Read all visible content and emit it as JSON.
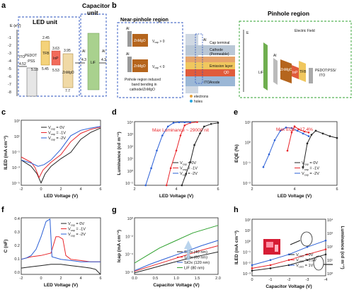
{
  "panels": {
    "a": {
      "label": "a",
      "led_title": "LED unit",
      "cap_title_1": "Capacitor",
      "cap_title_2": "unit",
      "yaxis_label": "E (eV)",
      "yticks": [
        "-1",
        "-2",
        "-3",
        "-4",
        "-5",
        "-6",
        "-7",
        "-8"
      ],
      "levels": {
        "ito": "ITO",
        "ito_val": "4.52",
        "pedot": "PEDOT",
        "pss": ":PSS",
        "pedot_val": "5.18",
        "tfb": "TFB",
        "tfb_top": "2.45",
        "tfb_bot": "5.45",
        "inp": "InP",
        "inp_top": "3.63",
        "inp_bot": "5.53",
        "znmgo": "ZnMgO",
        "znmgo_top": "3.95",
        "znmgo_bot": "7.7",
        "al1": "Al",
        "al1_val": "4.3",
        "lif": "LiF",
        "al2": "Al",
        "al2_val": "4.3"
      }
    },
    "b": {
      "label": "b",
      "near_title": "Near-pinhole region",
      "pin_title": "Pinhole region",
      "al": "Al",
      "znmgo": "ZnMgO",
      "vcap_pos": "V",
      "vcap_neg": "V",
      "gt0": " > 0",
      "lt0": " < 0",
      "caption": [
        "Pinhole region induced",
        "band bending in",
        "cathode/ZnMgO"
      ],
      "stack": [
        "Cap terminal",
        "Cathode",
        "(Permeable)",
        "Emission layer",
        "Anode"
      ],
      "al_tag": "Al",
      "qd": "QD",
      "ito": "ITO",
      "legend_e": "electrons",
      "legend_h": "holes",
      "e_axis": "E",
      "efield": "Electric Field",
      "lif": "LiF",
      "pin_layers": [
        "Al",
        "ZnMgO",
        "InP",
        "TFB",
        "PEDOT:PSS/",
        "ITO"
      ]
    },
    "c": {
      "label": "c",
      "ylabel": "I",
      "ylabel_sub": "LED",
      "ylabel_unit": " (mA cm",
      "xlabel": "LED Voltage (V)",
      "xticks": [
        "-2",
        "0",
        "2",
        "4",
        "6"
      ],
      "yticks": [
        "10³",
        "10¹",
        "10⁻¹",
        "10⁻³",
        "10⁻⁵"
      ]
    },
    "d": {
      "label": "d",
      "ylabel": "Luminance (cd m",
      "xlabel": "LED Voltage (V)",
      "annotation": "Max Luminance ~ 29000 nit",
      "xticks": [
        "2",
        "4",
        "6"
      ],
      "yticks": [
        "10⁴",
        "10³",
        "10²",
        "10¹",
        "10⁰",
        "10⁻¹"
      ]
    },
    "e": {
      "label": "e",
      "ylabel": "EQE (%)",
      "xlabel": "LED Voltage (V)",
      "annotation": "Max EQE ~17.4%",
      "xticks": [
        "2",
        "4",
        "6"
      ],
      "yticks": [
        "10¹",
        "10⁰",
        "10⁻¹",
        "10⁻²"
      ]
    },
    "f": {
      "label": "f",
      "ylabel": "C (nF)",
      "xlabel": "LED Voltage (V)",
      "xticks": [
        "-2",
        "0",
        "2",
        "4",
        "6"
      ],
      "yticks": [
        "0.4",
        "0.3",
        "0.2",
        "0.1",
        "0.0"
      ]
    },
    "g": {
      "label": "g",
      "ylabel": "I",
      "ylabel_sub": "cap",
      "ylabel_unit": " (mA cm",
      "xlabel": "Capacitor Voltage (V)",
      "xticks": [
        "0.0",
        "0.5",
        "1.0",
        "1.5",
        "2.0"
      ],
      "yticks": [
        "10⁰",
        "10⁻²",
        "10⁻⁴",
        "10⁻⁶"
      ]
    },
    "h": {
      "label": "h",
      "ylabel": "I",
      "ylabel_sub": "LED",
      "ylabel_unit": " (mA cm",
      "xlabel": "Capacitor Voltage (V)",
      "ylabel_r": "Luminance (cd m",
      "xticks": [
        "0",
        "-1",
        "-2",
        "-3",
        "-4"
      ],
      "yticks": [
        "10²",
        "10¹",
        "10⁰",
        "10⁻¹",
        "10⁻²",
        "10⁻³"
      ],
      "yticks_r": [
        "10⁴",
        "10³",
        "10²",
        "10¹",
        "10⁰"
      ]
    }
  },
  "legend_vcap": [
    {
      "name": "V",
      "sub": "cap",
      "val": " = 0V",
      "color": "#222222"
    },
    {
      "name": "V",
      "sub": "cap",
      "val": " = -1V",
      "color": "#e8262b"
    },
    {
      "name": "V",
      "sub": "cap",
      "val": " = -2V",
      "color": "#2a5fd6"
    }
  ],
  "legend_f": [
    {
      "name": "V",
      "sub": "cap",
      "val": " = 0V",
      "color": "#222222"
    },
    {
      "name": "V",
      "sub": "cap",
      "val": " = -1V",
      "color": "#e8262b"
    },
    {
      "name": "V",
      "sub": "cap",
      "val": " = -2V",
      "color": "#2a5fd6"
    }
  ],
  "legend_g": [
    {
      "name": "SiOx (40 nm)",
      "color": "#222222"
    },
    {
      "name": "SiOx (60 nm)",
      "color": "#e8262b"
    },
    {
      "name": "SiOx (120 nm)",
      "color": "#2a5fd6"
    },
    {
      "name": "LiF (80 nm)",
      "color": "#2ca02c"
    }
  ],
  "legend_h": [
    {
      "name": "V",
      "sub": "LED",
      "val": " = 0V",
      "color": "#222222"
    },
    {
      "name": "V",
      "sub": "LED",
      "val": " = 0.5V",
      "color": "#e8262b"
    },
    {
      "name": "V",
      "sub": "LED",
      "val": " = 1V",
      "color": "#2a5fd6"
    }
  ],
  "chart_data": [
    {
      "panel": "c",
      "type": "line",
      "xlim": [
        -2,
        6
      ],
      "log_y": true,
      "series": [
        {
          "name": "Vcap = 0V",
          "x": [
            -2,
            -1,
            -0.4,
            0,
            0.4,
            1,
            2,
            3,
            4,
            5,
            6
          ],
          "y": [
            0.02,
            0.003,
            0.0003,
            2e-05,
            0.0003,
            0.003,
            0.03,
            0.2,
            10,
            80,
            300
          ]
        },
        {
          "name": "Vcap = -1V",
          "x": [
            -2,
            -1,
            -0.6,
            -0.2,
            0.2,
            1,
            2,
            3,
            4,
            5,
            6
          ],
          "y": [
            0.05,
            0.01,
            0.002,
            0.0001,
            0.001,
            0.01,
            0.1,
            5,
            60,
            200,
            400
          ]
        },
        {
          "name": "Vcap = -2V",
          "x": [
            -2,
            -1,
            -0.3,
            0.3,
            1,
            2,
            3,
            4,
            5,
            6
          ],
          "y": [
            0.02,
            0.008,
            0.003,
            0.005,
            0.02,
            0.5,
            30,
            150,
            300,
            500
          ]
        }
      ]
    },
    {
      "panel": "d",
      "type": "line",
      "xlim": [
        0,
        6
      ],
      "log_y": true,
      "series": [
        {
          "name": "Vcap = 0V",
          "x": [
            3.4,
            3.7,
            4,
            4.3,
            4.7,
            5,
            5.5,
            6
          ],
          "y": [
            0.1,
            1,
            10,
            300,
            3000,
            12000,
            20000,
            25000
          ]
        },
        {
          "name": "Vcap = -1V",
          "x": [
            2.3,
            2.6,
            3,
            3.3,
            3.6,
            4,
            4.5
          ],
          "y": [
            0.1,
            3,
            100,
            2000,
            15000,
            25000,
            29000
          ]
        },
        {
          "name": "Vcap = -2V",
          "x": [
            0.8,
            1.2,
            1.6,
            2,
            2.4,
            2.8,
            3.2,
            3.6,
            4
          ],
          "y": [
            0.1,
            3,
            100,
            2000,
            12000,
            25000,
            28000,
            28000,
            28000
          ]
        }
      ]
    },
    {
      "panel": "e",
      "type": "line",
      "xlim": [
        0,
        6
      ],
      "log_y": true,
      "series": [
        {
          "name": "Vcap = 0V",
          "x": [
            3.6,
            3.9,
            4.2,
            4.5,
            5,
            5.5,
            6
          ],
          "y": [
            0.1,
            2,
            6,
            10,
            7,
            5,
            4
          ]
        },
        {
          "name": "Vcap = -1V",
          "x": [
            2.5,
            2.8,
            3,
            3.3,
            3.7,
            4
          ],
          "y": [
            0.8,
            8,
            17.4,
            12,
            9,
            8
          ]
        },
        {
          "name": "Vcap = -2V",
          "x": [
            0.8,
            1.2,
            1.6,
            2,
            2.4,
            2.8,
            3.2,
            3.6,
            4
          ],
          "y": [
            0.1,
            0.5,
            3,
            10,
            15,
            14,
            10,
            7,
            5
          ]
        }
      ]
    },
    {
      "panel": "f",
      "type": "line",
      "xlim": [
        -2,
        6
      ],
      "ylim": [
        0,
        0.45
      ],
      "series": [
        {
          "name": "Vcap = 0V",
          "x": [
            -2,
            -1,
            0,
            1,
            2,
            3,
            4,
            5,
            5.5,
            6
          ],
          "y": [
            0.05,
            0.06,
            0.07,
            0.08,
            0.08,
            0.07,
            0.06,
            0.05,
            0.04,
            0.0
          ]
        },
        {
          "name": "Vcap = -1V",
          "x": [
            -2,
            -1,
            0,
            1,
            1.5,
            1.8,
            2.2,
            2.5,
            3,
            4,
            5,
            6
          ],
          "y": [
            0.12,
            0.14,
            0.15,
            0.17,
            0.3,
            0.3,
            0.28,
            0.15,
            0.12,
            0.11,
            0.1,
            0.1
          ]
        },
        {
          "name": "Vcap = -2V",
          "x": [
            -2,
            -1.5,
            -1,
            -0.5,
            0,
            0.5,
            0.9,
            1.1,
            2,
            3,
            4,
            5,
            6
          ],
          "y": [
            0.12,
            0.13,
            0.15,
            0.2,
            0.3,
            0.42,
            0.44,
            0.14,
            0.12,
            0.11,
            0.1,
            0.1,
            0.1
          ]
        }
      ]
    },
    {
      "panel": "g",
      "type": "line",
      "xlim": [
        0,
        2
      ],
      "log_y": true,
      "series": [
        {
          "name": "SiOx (40 nm)",
          "x": [
            0,
            0.4,
            0.8,
            1.2,
            1.6,
            2
          ],
          "y": [
            5e-07,
            2e-06,
            8e-06,
            3e-05,
            0.0001,
            0.0003
          ]
        },
        {
          "name": "SiOx (60 nm)",
          "x": [
            0,
            0.4,
            0.8,
            1.2,
            1.6,
            2
          ],
          "y": [
            8e-07,
            4e-06,
            2e-05,
            0.0001,
            0.0005,
            0.002
          ]
        },
        {
          "name": "SiOx (120 nm)",
          "x": [
            0,
            0.4,
            0.8,
            1.2,
            1.6,
            2
          ],
          "y": [
            1e-06,
            8e-06,
            5e-05,
            0.0003,
            0.002,
            0.01
          ]
        },
        {
          "name": "LiF (80 nm)",
          "x": [
            0,
            0.3,
            0.6,
            1,
            1.4,
            2
          ],
          "y": [
            1e-05,
            0.0001,
            0.001,
            0.01,
            0.1,
            1
          ]
        }
      ]
    },
    {
      "panel": "h",
      "type": "line",
      "xlim": [
        0,
        -4
      ],
      "log_y": true,
      "series": [
        {
          "name": "VLED = 0V",
          "x": [
            0,
            -1,
            -2,
            -3,
            -4
          ],
          "y": [
            0.003,
            0.005,
            0.01,
            0.03,
            0.1
          ]
        },
        {
          "name": "VLED = 0.5V",
          "x": [
            0,
            -1,
            -2,
            -3,
            -4
          ],
          "y": [
            0.005,
            0.01,
            0.03,
            0.1,
            0.3
          ]
        },
        {
          "name": "VLED = 1V",
          "x": [
            0,
            -1,
            -2,
            -3,
            -4
          ],
          "y": [
            0.01,
            0.03,
            0.1,
            0.5,
            2
          ]
        }
      ]
    }
  ]
}
